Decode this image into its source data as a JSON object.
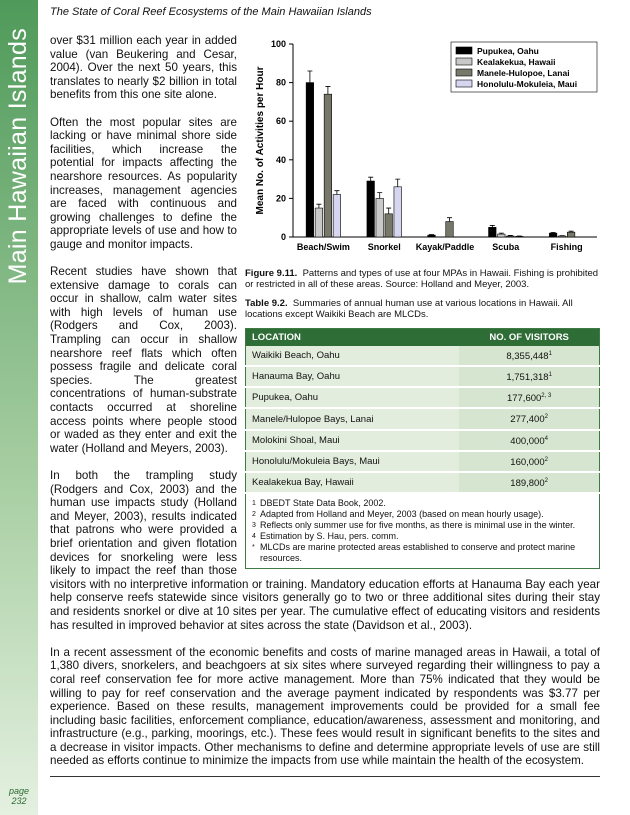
{
  "header": {
    "title": "The State of Coral Reef Ecosystems of the Main Hawaiian Islands"
  },
  "sidebar": {
    "title": "Main Hawaiian Islands",
    "page_label": "page",
    "page_number": "232"
  },
  "paragraphs": [
    "over $31 million each year in added value (van Beukering and Cesar, 2004).  Over the next 50 years, this translates to nearly $2 billion in total benefits from this one site alone.",
    "Often the most popular sites are lacking or have minimal shore side facilities, which increase the potential for impacts affecting the nearshore resources.  As popularity increases, management agencies are faced with continuous and growing challenges to define the appropriate levels of use and how to gauge and monitor impacts.",
    "Recent studies have shown that extensive damage to corals can occur in shallow, calm water sites with high levels of human use (Rodgers and Cox, 2003).  Trampling can occur in shallow nearshore reef flats which often possess fragile and delicate coral species.  The greatest concentrations of human-substrate contacts occurred at shoreline access points where people stood or waded as they enter and exit the water (Holland and Meyers, 2003).",
    "In both the trampling study (Rodgers and Cox, 2003) and the human use impacts study (Holland and Meyer, 2003), results indicated that patrons who were provided a brief orientation and given flotation devices for snorkeling were less likely to impact the reef than those visitors with no interpretive information or training.  Mandatory education efforts at Hanauma Bay each year help conserve reefs statewide since visitors generally go to two or three additional sites during their stay and residents snorkel or dive at 10 sites per year.  The cumulative effect of educating visitors and residents has resulted in improved behavior at sites across the state (Davidson et al., 2003).",
    "In a recent assessment of the economic benefits and costs of marine managed areas in Hawaii, a total of 1,380 divers, snorkelers, and beachgoers at six sites where surveyed regarding their willingness to pay a coral reef conservation fee for more active management.  More than 75% indicated that they would be willing to pay for reef conservation and the average payment indicated by respondents was $3.77 per experience.  Based on these results, management improvements could be provided for a small fee including basic facilities, enforcement compliance, education/awareness, assessment and monitoring, and infrastructure (e.g., parking, moorings, etc.).  These fees would result in significant benefits to the sites and a decrease in visitor impacts.  Other mechanisms to define and determine appropriate levels of use are still needed as efforts continue to minimize the impacts from use while maintain the health of the ecosystem."
  ],
  "chart_data": {
    "type": "bar",
    "y_label": "Mean No. of Activities per Hour",
    "categories": [
      "Beach/Swim",
      "Snorkel",
      "Kayak/Paddle",
      "Scuba",
      "Fishing"
    ],
    "series": [
      {
        "name": "Pupukea, Oahu",
        "color": "#000000",
        "values": [
          80,
          29,
          1,
          5,
          2
        ],
        "errors": [
          6,
          2,
          0.3,
          1,
          0.4
        ]
      },
      {
        "name": "Kealakekua, Hawaii",
        "color": "#c8c8c8",
        "values": [
          15,
          20,
          0,
          1.5,
          0.5
        ],
        "errors": [
          2,
          3,
          0,
          0.5,
          0.2
        ]
      },
      {
        "name": "Manele-Hulopoe, Lanai",
        "color": "#77786a",
        "values": [
          74,
          12,
          8,
          0.5,
          2.5
        ],
        "errors": [
          4,
          3,
          2,
          0.3,
          0.5
        ]
      },
      {
        "name": "Honolulu-Mokuleia, Maui",
        "color": "#d6d6f0",
        "values": [
          22,
          26,
          0,
          0.3,
          0
        ],
        "errors": [
          2,
          4,
          0,
          0.2,
          0
        ]
      }
    ],
    "ylim": [
      0,
      100
    ],
    "yticks": [
      0,
      20,
      40,
      60,
      80,
      100
    ],
    "legend": "upper right"
  },
  "figure_caption": {
    "label": "Figure 9.11.",
    "text": "Patterns and types of use at four MPAs in Hawaii.  Fishing is prohibited or restricted in all of these areas.  Source: Holland and Meyer, 2003."
  },
  "table_caption": {
    "label": "Table 9.2.",
    "text": "Summaries of annual human use at various locations in Hawaii.  All locations except Waikiki Beach are MLCDs."
  },
  "table": {
    "headers": [
      "LOCATION",
      "NO. OF VISITORS"
    ],
    "rows": [
      {
        "location": "Waikiki Beach, Oahu",
        "visitors": "8,355,448",
        "note": "1"
      },
      {
        "location": "Hanauma Bay, Oahu",
        "visitors": "1,751,318",
        "note": "1"
      },
      {
        "location": "Pupukea, Oahu",
        "visitors": "177,600",
        "note": "2, 3"
      },
      {
        "location": "Manele/Hulopoe Bays, Lanai",
        "visitors": "277,400",
        "note": "2"
      },
      {
        "location": "Molokini Shoal, Maui",
        "visitors": "400,000",
        "note": "4"
      },
      {
        "location": "Honolulu/Mokuleia Bays, Maui",
        "visitors": "160,000",
        "note": "2"
      },
      {
        "location": "Kealakekua Bay, Hawaii",
        "visitors": "189,800",
        "note": "2"
      }
    ],
    "footnotes": [
      {
        "marker": "1",
        "text": "DBEDT State Data Book, 2002."
      },
      {
        "marker": "2",
        "text": "Adapted from Holland and Meyer, 2003 (based on mean hourly usage)."
      },
      {
        "marker": "3",
        "text": "Reflects only summer use for five months, as there is minimal use in the winter."
      },
      {
        "marker": "4",
        "text": "Estimation by S. Hau, pers. comm."
      },
      {
        "marker": "*",
        "text": "MLCDs are marine protected areas established to conserve and protect marine resources."
      }
    ]
  }
}
